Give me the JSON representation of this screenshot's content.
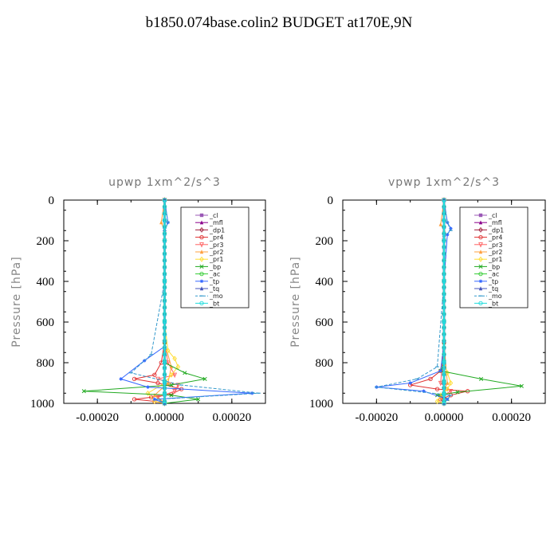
{
  "title": "b1850.074base.colin2  BUDGET at170E,9N",
  "chart_data": [
    {
      "type": "line",
      "title": "upwp   1xm^2/s^3",
      "ylabel": "Pressure [hPa]",
      "xlim": [
        -0.0003,
        0.0003
      ],
      "ylim": [
        1000,
        0
      ],
      "xticks": [
        -0.0002,
        0.0,
        0.0002
      ],
      "xtick_labels": [
        "-0.00020",
        "0.00000",
        "0.00020"
      ],
      "yticks": [
        0,
        200,
        400,
        600,
        800,
        1000
      ],
      "ytick_labels": [
        "0",
        "200",
        "400",
        "600",
        "800",
        "1000"
      ],
      "legend_position": "top-right",
      "series": [
        {
          "name": "_cl",
          "color": "#9b59b6",
          "marker": "square",
          "x": [
            0,
            0,
            0,
            0,
            0,
            0,
            0,
            0,
            0
          ],
          "y": [
            0,
            100,
            200,
            400,
            600,
            800,
            900,
            950,
            1000
          ]
        },
        {
          "name": "_mfl",
          "color": "#8b008b",
          "marker": "triangle",
          "x": [
            0,
            0,
            0,
            0,
            0,
            0,
            0,
            0,
            0
          ],
          "y": [
            0,
            100,
            200,
            400,
            600,
            800,
            900,
            950,
            1000
          ]
        },
        {
          "name": "_dp1",
          "color": "#a0203c",
          "marker": "diamond",
          "x": [
            0,
            0,
            0,
            0,
            0,
            0,
            0,
            0,
            0
          ],
          "y": [
            0,
            100,
            200,
            400,
            600,
            800,
            900,
            950,
            1000
          ]
        },
        {
          "name": "_pr4",
          "color": "#e03030",
          "marker": "circle",
          "x": [
            0,
            0,
            0,
            0,
            -1e-05,
            -3e-05,
            -9e-05,
            -2e-05,
            5e-05,
            2e-05,
            -4e-05,
            -9e-05,
            -3e-05,
            0
          ],
          "y": [
            0,
            200,
            400,
            700,
            800,
            860,
            880,
            900,
            930,
            955,
            970,
            980,
            990,
            1000
          ]
        },
        {
          "name": "_pr3",
          "color": "#ff6060",
          "marker": "triangle-down",
          "x": [
            0,
            0,
            0,
            0,
            1e-05,
            3e-05,
            -2e-05,
            4e-05,
            3e-05,
            -2e-05,
            0
          ],
          "y": [
            0,
            200,
            400,
            700,
            800,
            860,
            880,
            910,
            940,
            970,
            1000
          ]
        },
        {
          "name": "_pr2",
          "color": "#ffa040",
          "marker": "triangle",
          "x": [
            0,
            -1e-05,
            0,
            0,
            0,
            2e-05,
            1e-05,
            -3e-05,
            -1e-05,
            0
          ],
          "y": [
            0,
            110,
            150,
            400,
            700,
            820,
            900,
            960,
            990,
            1000
          ]
        },
        {
          "name": "_pr1",
          "color": "#ffdd33",
          "marker": "diamond",
          "x": [
            0,
            0,
            0,
            1e-05,
            3e-05,
            4e-05,
            2e-05,
            0,
            -5e-05,
            -3e-05,
            0
          ],
          "y": [
            0,
            200,
            600,
            740,
            780,
            820,
            860,
            900,
            950,
            990,
            1000
          ]
        },
        {
          "name": "_bp",
          "color": "#22aa22",
          "marker": "x",
          "x": [
            0,
            0,
            0,
            0,
            6e-05,
            0.00012,
            2e-05,
            -0.00024,
            2e-05,
            0.0001,
            0
          ],
          "y": [
            0,
            400,
            700,
            800,
            850,
            880,
            910,
            940,
            960,
            980,
            1000
          ]
        },
        {
          "name": "_ac",
          "color": "#33cc33",
          "marker": "circle",
          "x": [
            0,
            0,
            0,
            0,
            0,
            0,
            0,
            0,
            0
          ],
          "y": [
            0,
            100,
            200,
            400,
            600,
            800,
            900,
            950,
            1000
          ]
        },
        {
          "name": "_tp",
          "color": "#3366ff",
          "marker": "star",
          "x": [
            0,
            1e-05,
            0,
            0,
            0,
            -6e-05,
            -0.00013,
            -5e-05,
            0.00026,
            -3e-05,
            0
          ],
          "y": [
            0,
            110,
            150,
            400,
            720,
            790,
            880,
            920,
            950,
            980,
            1000
          ]
        },
        {
          "name": "_tq",
          "color": "#4455bb",
          "marker": "triangle",
          "x": [
            0,
            0,
            0,
            0,
            0,
            0,
            0,
            0,
            0
          ],
          "y": [
            0,
            100,
            200,
            400,
            600,
            800,
            900,
            950,
            1000
          ]
        },
        {
          "name": "_mo",
          "color": "#3399cc",
          "marker": "dash",
          "x": [
            0,
            1e-05,
            0,
            0,
            -4e-05,
            -0.0001,
            5e-05,
            0.00028,
            -2e-05,
            0
          ],
          "y": [
            0,
            110,
            150,
            400,
            760,
            850,
            910,
            950,
            980,
            1000
          ]
        },
        {
          "name": "_bt",
          "color": "#22dddd",
          "marker": "circle",
          "x": [
            0,
            0,
            0,
            0,
            0,
            0,
            0,
            0,
            0
          ],
          "y": [
            0,
            100,
            200,
            400,
            600,
            800,
            900,
            950,
            1000
          ]
        }
      ]
    },
    {
      "type": "line",
      "title": "vpwp   1xm^2/s^3",
      "ylabel": "Pressure [hPa]",
      "xlim": [
        -0.0003,
        0.0003
      ],
      "ylim": [
        1000,
        0
      ],
      "xticks": [
        -0.0002,
        0.0,
        0.0002
      ],
      "xtick_labels": [
        "-0.00020",
        "0.00000",
        "0.00020"
      ],
      "yticks": [
        0,
        200,
        400,
        600,
        800,
        1000
      ],
      "ytick_labels": [
        "0",
        "200",
        "400",
        "600",
        "800",
        "1000"
      ],
      "legend_position": "top-right",
      "series": [
        {
          "name": "_cl",
          "color": "#9b59b6",
          "marker": "square",
          "x": [
            0,
            0,
            0,
            0,
            0,
            0,
            0,
            0,
            0
          ],
          "y": [
            0,
            100,
            200,
            400,
            600,
            800,
            900,
            950,
            1000
          ]
        },
        {
          "name": "_mfl",
          "color": "#8b008b",
          "marker": "triangle",
          "x": [
            0,
            0,
            0,
            0,
            0,
            0,
            0,
            0,
            0
          ],
          "y": [
            0,
            100,
            200,
            400,
            600,
            800,
            900,
            950,
            1000
          ]
        },
        {
          "name": "_dp1",
          "color": "#a0203c",
          "marker": "diamond",
          "x": [
            0,
            0,
            0,
            0,
            0,
            0,
            0,
            0,
            0
          ],
          "y": [
            0,
            100,
            200,
            400,
            600,
            800,
            900,
            950,
            1000
          ]
        },
        {
          "name": "_pr4",
          "color": "#e03030",
          "marker": "circle",
          "x": [
            0,
            0,
            0,
            0,
            -1e-05,
            -4e-05,
            -0.0001,
            -2e-05,
            7e-05,
            2e-05,
            -1e-05,
            0
          ],
          "y": [
            0,
            200,
            400,
            700,
            840,
            880,
            910,
            930,
            940,
            960,
            980,
            1000
          ]
        },
        {
          "name": "_pr3",
          "color": "#ff6060",
          "marker": "triangle-down",
          "x": [
            0,
            0,
            0,
            0,
            -1e-05,
            2e-05,
            -1e-05,
            0
          ],
          "y": [
            0,
            200,
            400,
            700,
            900,
            940,
            970,
            1000
          ]
        },
        {
          "name": "_pr2",
          "color": "#ffa040",
          "marker": "triangle",
          "x": [
            0,
            -1e-05,
            0,
            0,
            0,
            1e-05,
            -1e-05,
            0
          ],
          "y": [
            0,
            120,
            150,
            400,
            700,
            900,
            970,
            1000
          ]
        },
        {
          "name": "_pr1",
          "color": "#ffdd33",
          "marker": "diamond",
          "x": [
            0,
            0,
            0,
            0,
            1e-05,
            2e-05,
            1e-05,
            -1e-05,
            -2e-05,
            0
          ],
          "y": [
            0,
            200,
            600,
            800,
            850,
            900,
            930,
            960,
            990,
            1000
          ]
        },
        {
          "name": "_bp",
          "color": "#22aa22",
          "marker": "x",
          "x": [
            0,
            0,
            0,
            0,
            -1e-05,
            0.00011,
            0.00023,
            4e-05,
            -2e-05,
            1e-05,
            0
          ],
          "y": [
            0,
            400,
            700,
            800,
            840,
            880,
            915,
            945,
            960,
            980,
            1000
          ]
        },
        {
          "name": "_ac",
          "color": "#33cc33",
          "marker": "circle",
          "x": [
            0,
            0,
            0,
            0,
            0,
            0,
            0,
            0,
            0
          ],
          "y": [
            0,
            100,
            200,
            400,
            600,
            800,
            900,
            950,
            1000
          ]
        },
        {
          "name": "_tp",
          "color": "#3366ff",
          "marker": "star",
          "x": [
            0,
            1e-05,
            2e-05,
            1e-05,
            0,
            0,
            -1e-05,
            -0.0001,
            -0.0002,
            -6e-05,
            1e-05,
            0
          ],
          "y": [
            0,
            110,
            140,
            170,
            400,
            700,
            840,
            900,
            920,
            940,
            980,
            1000
          ]
        },
        {
          "name": "_tq",
          "color": "#4455bb",
          "marker": "triangle",
          "x": [
            0,
            0,
            0,
            0,
            0,
            0,
            0,
            0,
            0
          ],
          "y": [
            0,
            100,
            200,
            400,
            600,
            800,
            900,
            950,
            1000
          ]
        },
        {
          "name": "_mo",
          "color": "#3399cc",
          "marker": "dash",
          "x": [
            0,
            1e-05,
            2e-05,
            0,
            0,
            -2e-05,
            -8e-05,
            -0.0002,
            2e-05,
            0
          ],
          "y": [
            0,
            110,
            150,
            180,
            400,
            820,
            880,
            920,
            960,
            1000
          ]
        },
        {
          "name": "_bt",
          "color": "#22dddd",
          "marker": "circle",
          "x": [
            0,
            0,
            0,
            0,
            0,
            0,
            0,
            0,
            0
          ],
          "y": [
            0,
            100,
            200,
            400,
            600,
            800,
            900,
            950,
            1000
          ]
        }
      ]
    }
  ]
}
